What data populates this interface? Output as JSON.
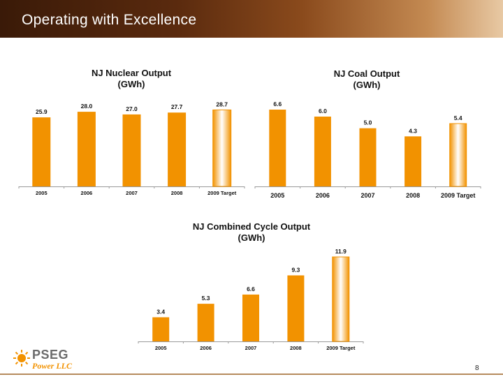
{
  "page": {
    "title": "Operating with Excellence",
    "page_number": "8"
  },
  "logo": {
    "name": "PSEG",
    "subtitle": "Power LLC"
  },
  "colors": {
    "bar": "#f29200",
    "target_bar_edge": "#f29200",
    "target_bar_center": "#ffffff",
    "header_dark": "#3a1a08"
  },
  "chart_data": [
    {
      "type": "bar",
      "title_line1": "NJ Nuclear Output",
      "title_line2": "(GWh)",
      "categories": [
        "2005",
        "2006",
        "2007",
        "2008",
        "2009 Target"
      ],
      "values": [
        25.9,
        28.0,
        27.0,
        27.7,
        28.7
      ],
      "value_labels": [
        "25.9",
        "28.0",
        "27.0",
        "27.7",
        "28.7"
      ],
      "highlight_last": true,
      "ylim": [
        0,
        33
      ]
    },
    {
      "type": "bar",
      "title_line1": "NJ Coal Output",
      "title_line2": "(GWh)",
      "categories": [
        "2005",
        "2006",
        "2007",
        "2008",
        "2009 Target"
      ],
      "values": [
        6.6,
        6.0,
        5.0,
        4.3,
        5.4
      ],
      "value_labels": [
        "6.6",
        "6.0",
        "5.0",
        "4.3",
        "5.4"
      ],
      "highlight_last": true,
      "ylim": [
        0,
        7.5
      ]
    },
    {
      "type": "bar",
      "title_line1": "NJ Combined Cycle Output",
      "title_line2": "(GWh)",
      "categories": [
        "2005",
        "2006",
        "2007",
        "2008",
        "2009 Target"
      ],
      "values": [
        3.4,
        5.3,
        6.6,
        9.3,
        11.9
      ],
      "value_labels": [
        "3.4",
        "5.3",
        "6.6",
        "9.3",
        "11.9"
      ],
      "highlight_last": true,
      "ylim": [
        0,
        12
      ]
    }
  ]
}
